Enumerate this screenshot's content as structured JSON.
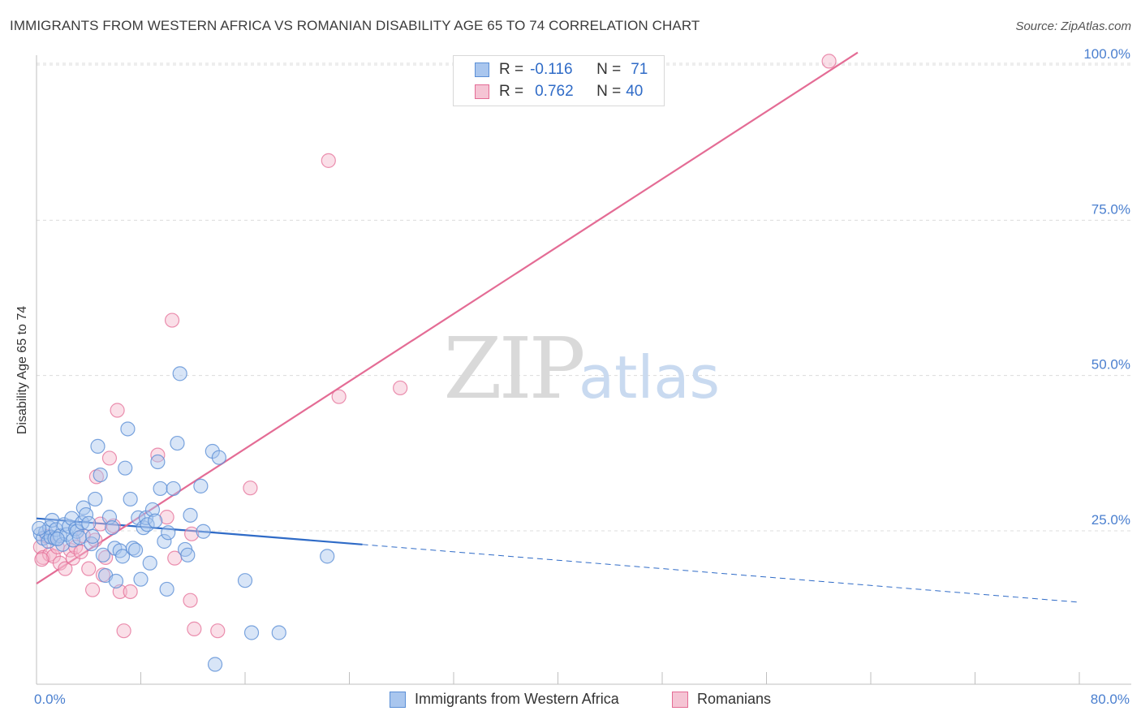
{
  "title": "IMMIGRANTS FROM WESTERN AFRICA VS ROMANIAN DISABILITY AGE 65 TO 74 CORRELATION CHART",
  "source": "Source: ZipAtlas.com",
  "watermark": {
    "zip": "ZIP",
    "atlas": "atlas"
  },
  "colors": {
    "blue": "#5b8fd6",
    "blue_fill": "#a9c6ee",
    "blue_line": "#2f6bc7",
    "pink": "#e46c95",
    "pink_fill": "#f5b7cb",
    "pink_line": "#e46c95",
    "axis_text": "#4a7fcf",
    "grid": "#dcdcdc"
  },
  "legend": {
    "rows": [
      {
        "r_label": "R =",
        "r_value": "-0.116",
        "n_label": "N =",
        "n_value": "71"
      },
      {
        "r_label": "R =",
        "r_value": "0.762",
        "n_label": "N =",
        "n_value": "40"
      }
    ]
  },
  "bottom_legend": {
    "blue": "Immigrants from Western Africa",
    "pink": "Romanians"
  },
  "axes": {
    "x_min_label": "0.0%",
    "x_max_label": "80.0%",
    "y_label": "Disability Age 65 to 74"
  },
  "chart_data": {
    "type": "scatter",
    "title": "IMMIGRANTS FROM WESTERN AFRICA VS ROMANIAN DISABILITY AGE 65 TO 74 CORRELATION CHART",
    "xlabel": "",
    "ylabel": "Disability Age 65 to 74",
    "xlim": [
      0,
      80
    ],
    "ylim": [
      0,
      102
    ],
    "y_ticks": [
      25,
      50,
      75,
      100
    ],
    "y_tick_labels": [
      "25.0%",
      "50.0%",
      "75.0%",
      "100.0%"
    ],
    "x_ticks": [
      0,
      8,
      16,
      24,
      32,
      40,
      48,
      56,
      64,
      72,
      80
    ],
    "series": [
      {
        "name": "Immigrants from Western Africa",
        "color": "blue",
        "r": -0.116,
        "n": 71,
        "trend": {
          "x0": 0,
          "y0": 27.0,
          "x1": 25,
          "y1": 22.8,
          "dash_x1": 80,
          "dash_y1": 13.5
        },
        "points": [
          [
            0.3,
            24.5
          ],
          [
            0.5,
            23.8
          ],
          [
            0.7,
            24.8
          ],
          [
            0.9,
            23.3
          ],
          [
            1.0,
            25.5
          ],
          [
            1.1,
            24.0
          ],
          [
            1.2,
            26.7
          ],
          [
            1.4,
            23.8
          ],
          [
            1.5,
            25.2
          ],
          [
            1.8,
            24.2
          ],
          [
            2.0,
            22.8
          ],
          [
            2.1,
            26.0
          ],
          [
            2.3,
            24.4
          ],
          [
            2.5,
            25.7
          ],
          [
            2.7,
            27.0
          ],
          [
            2.8,
            23.5
          ],
          [
            3.0,
            25.3
          ],
          [
            3.1,
            24.9
          ],
          [
            3.3,
            23.9
          ],
          [
            3.5,
            26.3
          ],
          [
            3.6,
            28.7
          ],
          [
            3.8,
            27.6
          ],
          [
            4.0,
            26.2
          ],
          [
            4.2,
            22.9
          ],
          [
            4.3,
            24.1
          ],
          [
            4.5,
            30.1
          ],
          [
            4.7,
            38.6
          ],
          [
            4.9,
            34.0
          ],
          [
            5.1,
            21.1
          ],
          [
            5.3,
            17.8
          ],
          [
            5.6,
            27.2
          ],
          [
            5.8,
            25.5
          ],
          [
            6.0,
            22.2
          ],
          [
            6.1,
            16.9
          ],
          [
            6.4,
            21.8
          ],
          [
            6.6,
            20.9
          ],
          [
            6.8,
            35.1
          ],
          [
            7.0,
            41.4
          ],
          [
            7.2,
            30.1
          ],
          [
            7.4,
            22.2
          ],
          [
            7.6,
            21.9
          ],
          [
            7.8,
            27.1
          ],
          [
            8.0,
            17.2
          ],
          [
            8.2,
            25.5
          ],
          [
            8.4,
            27.1
          ],
          [
            8.5,
            26.0
          ],
          [
            8.7,
            19.8
          ],
          [
            8.9,
            28.4
          ],
          [
            9.1,
            26.6
          ],
          [
            9.3,
            36.1
          ],
          [
            9.5,
            31.8
          ],
          [
            9.8,
            23.3
          ],
          [
            10.0,
            15.6
          ],
          [
            10.1,
            24.7
          ],
          [
            10.5,
            31.8
          ],
          [
            10.8,
            39.1
          ],
          [
            11.0,
            50.3
          ],
          [
            11.4,
            22.0
          ],
          [
            11.6,
            21.1
          ],
          [
            11.8,
            27.5
          ],
          [
            12.6,
            32.2
          ],
          [
            12.8,
            24.9
          ],
          [
            13.5,
            37.8
          ],
          [
            13.7,
            3.5
          ],
          [
            14.0,
            36.8
          ],
          [
            16.0,
            17.0
          ],
          [
            16.5,
            8.6
          ],
          [
            18.6,
            8.6
          ],
          [
            22.3,
            20.9
          ],
          [
            0.2,
            25.4
          ],
          [
            1.6,
            23.7
          ]
        ]
      },
      {
        "name": "Romanians",
        "color": "pink",
        "r": 0.762,
        "n": 40,
        "trend": {
          "x0": 0,
          "y0": 16.5,
          "x1": 63,
          "y1": 102
        },
        "points": [
          [
            0.3,
            22.4
          ],
          [
            0.5,
            20.7
          ],
          [
            0.8,
            24.1
          ],
          [
            1.0,
            21.2
          ],
          [
            1.3,
            20.9
          ],
          [
            1.6,
            22.4
          ],
          [
            1.8,
            19.8
          ],
          [
            2.2,
            18.9
          ],
          [
            2.6,
            21.9
          ],
          [
            2.8,
            20.6
          ],
          [
            3.0,
            22.4
          ],
          [
            3.4,
            21.6
          ],
          [
            3.6,
            24.2
          ],
          [
            4.0,
            18.9
          ],
          [
            4.3,
            15.5
          ],
          [
            4.5,
            23.5
          ],
          [
            4.6,
            33.7
          ],
          [
            4.9,
            26.1
          ],
          [
            5.1,
            17.9
          ],
          [
            5.3,
            20.7
          ],
          [
            5.6,
            36.7
          ],
          [
            5.9,
            25.8
          ],
          [
            6.2,
            44.4
          ],
          [
            6.4,
            15.2
          ],
          [
            6.7,
            8.9
          ],
          [
            7.2,
            15.2
          ],
          [
            9.3,
            37.2
          ],
          [
            10.0,
            27.2
          ],
          [
            10.4,
            58.9
          ],
          [
            10.6,
            20.6
          ],
          [
            11.8,
            13.8
          ],
          [
            11.9,
            24.5
          ],
          [
            12.1,
            9.2
          ],
          [
            13.9,
            8.9
          ],
          [
            16.4,
            31.9
          ],
          [
            22.4,
            84.6
          ],
          [
            23.2,
            46.6
          ],
          [
            27.9,
            48.0
          ],
          [
            60.8,
            100.6
          ],
          [
            0.4,
            20.4
          ]
        ]
      }
    ]
  }
}
